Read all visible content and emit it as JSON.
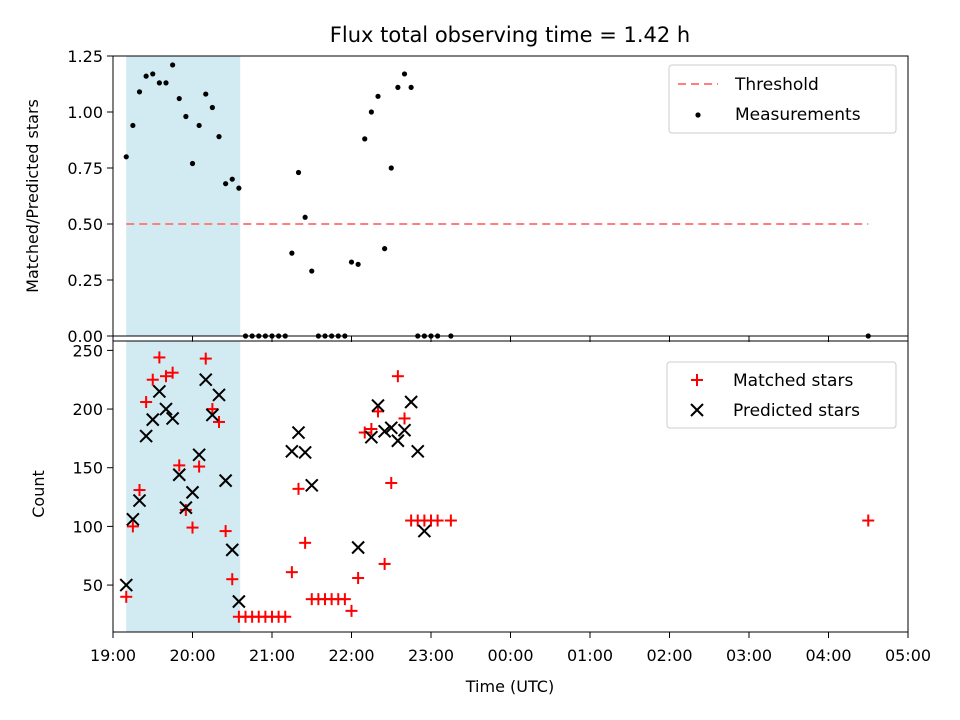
{
  "chart_data": [
    {
      "type": "scatter",
      "title": "Flux total observing time = 1.42 h",
      "ylabel": "Matched/Predicted stars",
      "xlim": [
        "19:00",
        "05:00"
      ],
      "ylim": [
        0,
        1.25
      ],
      "yticks": [
        "0.00",
        "0.25",
        "0.50",
        "0.75",
        "1.00",
        "1.25"
      ],
      "shaded_region": {
        "x": [
          "19:10",
          "20:36"
        ],
        "color": "#add8e6"
      },
      "legend_position": "top-right",
      "threshold": {
        "name": "Threshold",
        "value": 0.5,
        "x": [
          "19:10",
          "04:30"
        ],
        "color": "#ff7f7f",
        "style": "dashed"
      },
      "series": [
        {
          "name": "Measurements",
          "color": "#000000",
          "marker": "dot",
          "x": [
            "19:10",
            "19:15",
            "19:20",
            "19:25",
            "19:30",
            "19:35",
            "19:40",
            "19:45",
            "19:50",
            "19:55",
            "20:00",
            "20:05",
            "20:10",
            "20:15",
            "20:20",
            "20:25",
            "20:30",
            "20:35",
            "20:40",
            "20:45",
            "20:50",
            "20:55",
            "21:00",
            "21:05",
            "21:10",
            "21:15",
            "21:20",
            "21:25",
            "21:30",
            "21:35",
            "21:40",
            "21:45",
            "21:50",
            "21:55",
            "22:00",
            "22:05",
            "22:10",
            "22:15",
            "22:20",
            "22:25",
            "22:30",
            "22:35",
            "22:40",
            "22:45",
            "22:50",
            "22:55",
            "23:00",
            "23:05",
            "23:15",
            "04:30"
          ],
          "y": [
            0.8,
            0.94,
            1.09,
            1.16,
            1.17,
            1.13,
            1.13,
            1.21,
            1.06,
            0.98,
            0.77,
            0.94,
            1.08,
            1.02,
            0.89,
            0.68,
            0.7,
            0.66,
            0.0,
            0.0,
            0.0,
            0.0,
            0.0,
            0.0,
            0.0,
            0.37,
            0.73,
            0.53,
            0.29,
            0.0,
            0.0,
            0.0,
            0.0,
            0.0,
            0.33,
            0.32,
            0.88,
            1.0,
            1.07,
            0.39,
            0.75,
            1.11,
            1.17,
            1.11,
            0.0,
            0.0,
            0.0,
            0.0,
            0.0,
            0.0
          ]
        }
      ]
    },
    {
      "type": "scatter",
      "xlabel": "Time (UTC)",
      "ylabel": "Count",
      "xlim": [
        "19:00",
        "05:00"
      ],
      "ylim": [
        10,
        258
      ],
      "xticks": [
        "19:00",
        "20:00",
        "21:00",
        "22:00",
        "23:00",
        "00:00",
        "01:00",
        "02:00",
        "03:00",
        "04:00",
        "05:00"
      ],
      "yticks": [
        "50",
        "100",
        "150",
        "200",
        "250"
      ],
      "shaded_region": {
        "x": [
          "19:10",
          "20:36"
        ],
        "color": "#add8e6"
      },
      "legend_position": "top-right",
      "series": [
        {
          "name": "Matched stars",
          "color": "#ff0000",
          "marker": "plus",
          "x": [
            "19:10",
            "19:15",
            "19:20",
            "19:25",
            "19:30",
            "19:35",
            "19:40",
            "19:45",
            "19:50",
            "19:55",
            "20:00",
            "20:05",
            "20:10",
            "20:15",
            "20:20",
            "20:25",
            "20:30",
            "20:35",
            "20:40",
            "20:45",
            "20:50",
            "20:55",
            "21:00",
            "21:05",
            "21:10",
            "21:15",
            "21:20",
            "21:25",
            "21:30",
            "21:35",
            "21:40",
            "21:45",
            "21:50",
            "21:55",
            "22:00",
            "22:05",
            "22:10",
            "22:15",
            "22:20",
            "22:25",
            "22:30",
            "22:35",
            "22:40",
            "22:45",
            "22:50",
            "22:55",
            "23:00",
            "23:05",
            "23:15",
            "04:30"
          ],
          "y": [
            40,
            100,
            131,
            206,
            225,
            244,
            228,
            231,
            152,
            114,
            99,
            151,
            243,
            200,
            189,
            96,
            55,
            23,
            23,
            23,
            23,
            23,
            23,
            23,
            23,
            61,
            132,
            86,
            38,
            38,
            38,
            38,
            38,
            38,
            28,
            56,
            180,
            183,
            198,
            68,
            137,
            228,
            192,
            105,
            105,
            105,
            105,
            105,
            105,
            105
          ]
        },
        {
          "name": "Predicted stars",
          "color": "#000000",
          "marker": "x",
          "x": [
            "19:10",
            "19:15",
            "19:20",
            "19:25",
            "19:30",
            "19:35",
            "19:40",
            "19:45",
            "19:50",
            "19:55",
            "20:00",
            "20:05",
            "20:10",
            "20:15",
            "20:20",
            "20:25",
            "20:30",
            "20:35",
            "21:15",
            "21:20",
            "21:25",
            "21:30",
            "22:05",
            "22:15",
            "22:20",
            "22:25",
            "22:30",
            "22:35",
            "22:40",
            "22:45",
            "22:50",
            "22:55"
          ],
          "y": [
            50,
            106,
            122,
            177,
            191,
            215,
            200,
            192,
            144,
            116,
            129,
            161,
            225,
            195,
            212,
            139,
            80,
            36,
            164,
            180,
            163,
            135,
            82,
            176,
            203,
            181,
            184,
            173,
            182,
            206,
            164,
            96
          ]
        }
      ]
    }
  ]
}
